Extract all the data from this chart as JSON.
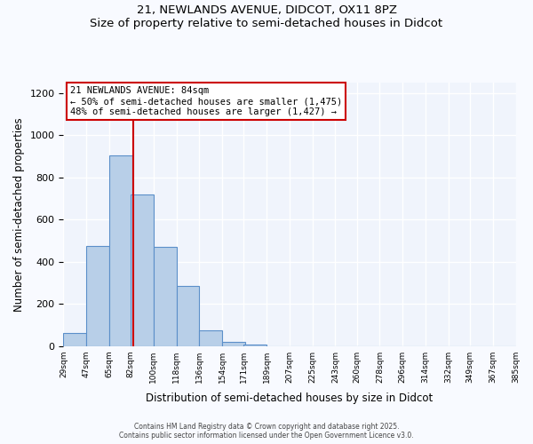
{
  "title_line1": "21, NEWLANDS AVENUE, DIDCOT, OX11 8PZ",
  "title_line2": "Size of property relative to semi-detached houses in Didcot",
  "xlabel": "Distribution of semi-detached houses by size in Didcot",
  "ylabel": "Number of semi-detached properties",
  "bin_labels": [
    "29sqm",
    "47sqm",
    "65sqm",
    "82sqm",
    "100sqm",
    "118sqm",
    "136sqm",
    "154sqm",
    "171sqm",
    "189sqm",
    "207sqm",
    "225sqm",
    "243sqm",
    "260sqm",
    "278sqm",
    "296sqm",
    "314sqm",
    "332sqm",
    "349sqm",
    "367sqm",
    "385sqm"
  ],
  "bin_edges": [
    29,
    47,
    65,
    82,
    100,
    118,
    136,
    154,
    171,
    189,
    207,
    225,
    243,
    260,
    278,
    296,
    314,
    332,
    349,
    367,
    385
  ],
  "bar_values": [
    60,
    475,
    905,
    720,
    470,
    285,
    75,
    20,
    8,
    0,
    0,
    0,
    0,
    0,
    0,
    0,
    0,
    0,
    0,
    0
  ],
  "bar_color": "#b8cfe8",
  "bar_edge_color": "#5b8fc9",
  "property_line_x": 84,
  "property_line_color": "#cc0000",
  "annotation_title": "21 NEWLANDS AVENUE: 84sqm",
  "annotation_line2": "← 50% of semi-detached houses are smaller (1,475)",
  "annotation_line3": "48% of semi-detached houses are larger (1,427) →",
  "annotation_box_color": "#cc0000",
  "ylim": [
    0,
    1250
  ],
  "yticks": [
    0,
    200,
    400,
    600,
    800,
    1000,
    1200
  ],
  "background_color": "#f0f4fc",
  "grid_color": "#ffffff",
  "footer_line1": "Contains HM Land Registry data © Crown copyright and database right 2025.",
  "footer_line2": "Contains public sector information licensed under the Open Government Licence v3.0."
}
